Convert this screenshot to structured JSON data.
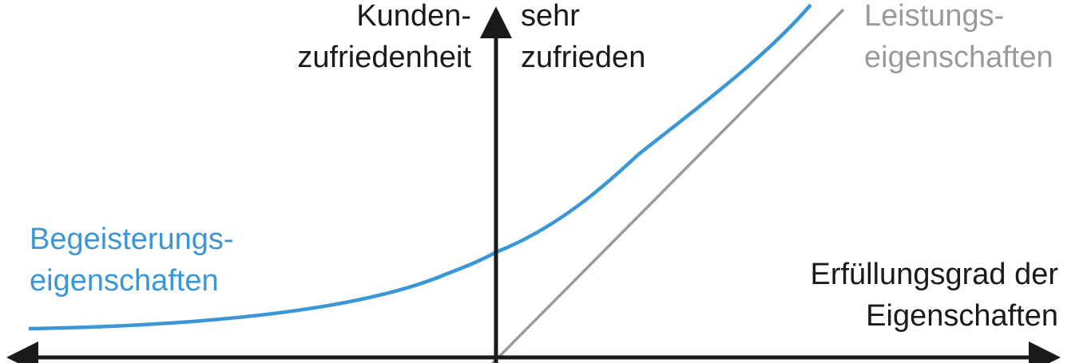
{
  "y_axis": {
    "label_lines": [
      "Kunden-",
      "zufriedenheit"
    ],
    "top_label_lines": [
      "sehr",
      "zufrieden"
    ]
  },
  "x_axis": {
    "label_lines": [
      "Erfüllungsgrad der",
      "Eigenschaften"
    ]
  },
  "curves": {
    "excitement": {
      "label_lines": [
        "Begeisterungs-",
        "eigenschaften"
      ],
      "color": "#3b96d6"
    },
    "performance": {
      "label_lines": [
        "Leistungs-",
        "eigenschaften"
      ],
      "color": "#9a9a9a"
    }
  },
  "axis_color": "#1a1a1a"
}
